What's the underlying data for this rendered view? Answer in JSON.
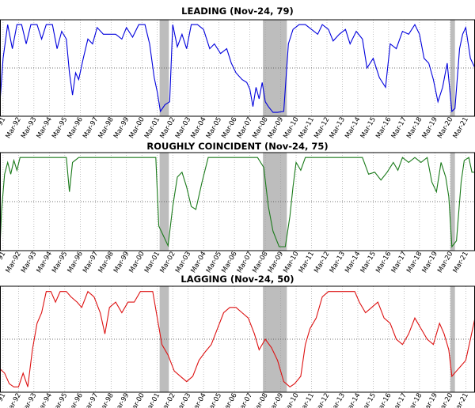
{
  "x_tick_labels": [
    "Mar-91",
    "Mar-92",
    "Mar-93",
    "Mar-94",
    "Mar-95",
    "Mar-96",
    "Mar-97",
    "Mar-98",
    "Mar-99",
    "Mar-00",
    "Mar-01",
    "Mar-02",
    "Mar-03",
    "Mar-04",
    "Mar-05",
    "Mar-06",
    "Mar-07",
    "Mar-08",
    "Mar-09",
    "Mar-10",
    "Mar-11",
    "Mar-12",
    "Mar-13",
    "Mar-14",
    "Mar-15",
    "Mar-16",
    "Mar-17",
    "Mar-18",
    "Mar-19",
    "Mar-20",
    "Mar-21"
  ],
  "chart_data": [
    {
      "type": "line",
      "title": "LEADING (Nov-24, 79)",
      "color": "#0000dd",
      "ylim": [
        0,
        100
      ],
      "reference_line": 50,
      "grid": "vertical dotted",
      "x_range": [
        1990.9,
        2021.7
      ],
      "recessions": [
        [
          2001.25,
          2001.85
        ],
        [
          2007.95,
          2009.5
        ],
        [
          2020.1,
          2020.4
        ]
      ],
      "series": [
        {
          "points": [
            [
              1990.9,
              15
            ],
            [
              1991.1,
              60
            ],
            [
              1991.4,
              95
            ],
            [
              1991.7,
              70
            ],
            [
              1992.0,
              95
            ],
            [
              1992.3,
              95
            ],
            [
              1992.6,
              75
            ],
            [
              1992.9,
              95
            ],
            [
              1993.3,
              95
            ],
            [
              1993.6,
              80
            ],
            [
              1993.9,
              95
            ],
            [
              1994.3,
              95
            ],
            [
              1994.6,
              70
            ],
            [
              1994.9,
              88
            ],
            [
              1995.2,
              80
            ],
            [
              1995.4,
              45
            ],
            [
              1995.6,
              22
            ],
            [
              1995.8,
              45
            ],
            [
              1996.0,
              38
            ],
            [
              1996.3,
              60
            ],
            [
              1996.6,
              80
            ],
            [
              1996.9,
              75
            ],
            [
              1997.2,
              92
            ],
            [
              1997.6,
              85
            ],
            [
              1998.0,
              85
            ],
            [
              1998.4,
              85
            ],
            [
              1998.8,
              80
            ],
            [
              1999.1,
              92
            ],
            [
              1999.5,
              82
            ],
            [
              1999.9,
              95
            ],
            [
              2000.3,
              95
            ],
            [
              2000.6,
              75
            ],
            [
              2000.9,
              40
            ],
            [
              2001.1,
              25
            ],
            [
              2001.3,
              5
            ],
            [
              2001.6,
              12
            ],
            [
              2001.9,
              15
            ],
            [
              2002.1,
              95
            ],
            [
              2002.4,
              72
            ],
            [
              2002.7,
              85
            ],
            [
              2003.0,
              70
            ],
            [
              2003.3,
              95
            ],
            [
              2003.7,
              95
            ],
            [
              2004.1,
              90
            ],
            [
              2004.5,
              70
            ],
            [
              2004.8,
              75
            ],
            [
              2005.2,
              65
            ],
            [
              2005.6,
              70
            ],
            [
              2005.9,
              55
            ],
            [
              2006.2,
              45
            ],
            [
              2006.6,
              38
            ],
            [
              2006.9,
              35
            ],
            [
              2007.1,
              28
            ],
            [
              2007.3,
              10
            ],
            [
              2007.5,
              30
            ],
            [
              2007.7,
              18
            ],
            [
              2007.9,
              35
            ],
            [
              2008.1,
              15
            ],
            [
              2008.3,
              10
            ],
            [
              2008.6,
              4
            ],
            [
              2008.9,
              4
            ],
            [
              2009.3,
              5
            ],
            [
              2009.6,
              75
            ],
            [
              2009.9,
              90
            ],
            [
              2010.3,
              95
            ],
            [
              2010.7,
              95
            ],
            [
              2011.1,
              90
            ],
            [
              2011.5,
              85
            ],
            [
              2011.8,
              95
            ],
            [
              2012.2,
              90
            ],
            [
              2012.5,
              78
            ],
            [
              2012.9,
              85
            ],
            [
              2013.3,
              90
            ],
            [
              2013.6,
              75
            ],
            [
              2014.0,
              88
            ],
            [
              2014.4,
              80
            ],
            [
              2014.7,
              50
            ],
            [
              2015.1,
              60
            ],
            [
              2015.5,
              40
            ],
            [
              2015.9,
              30
            ],
            [
              2016.2,
              75
            ],
            [
              2016.6,
              70
            ],
            [
              2017.0,
              88
            ],
            [
              2017.4,
              85
            ],
            [
              2017.8,
              95
            ],
            [
              2018.1,
              85
            ],
            [
              2018.4,
              60
            ],
            [
              2018.7,
              55
            ],
            [
              2019.0,
              38
            ],
            [
              2019.3,
              15
            ],
            [
              2019.6,
              30
            ],
            [
              2019.9,
              55
            ],
            [
              2020.2,
              5
            ],
            [
              2020.4,
              8
            ],
            [
              2020.7,
              70
            ],
            [
              2020.9,
              85
            ],
            [
              2021.1,
              92
            ],
            [
              2021.4,
              60
            ],
            [
              2021.7,
              50
            ]
          ]
        }
      ]
    },
    {
      "type": "line",
      "title": "ROUGHLY COINCIDENT (Nov-24, 75)",
      "color": "#1a7a1a",
      "ylim": [
        0,
        100
      ],
      "reference_line": 50,
      "grid": "vertical dotted",
      "x_range": [
        1990.9,
        2021.7
      ],
      "recessions": [
        [
          2001.25,
          2001.85
        ],
        [
          2007.95,
          2009.5
        ],
        [
          2020.1,
          2020.4
        ]
      ],
      "series": [
        {
          "points": [
            [
              1990.9,
              4
            ],
            [
              1991.0,
              40
            ],
            [
              1991.2,
              78
            ],
            [
              1991.4,
              90
            ],
            [
              1991.6,
              78
            ],
            [
              1991.8,
              92
            ],
            [
              1992.0,
              82
            ],
            [
              1992.2,
              95
            ],
            [
              1992.5,
              95
            ],
            [
              1993.5,
              95
            ],
            [
              1994.5,
              95
            ],
            [
              1995.2,
              95
            ],
            [
              1995.4,
              60
            ],
            [
              1995.6,
              90
            ],
            [
              1996.0,
              95
            ],
            [
              1997.0,
              95
            ],
            [
              1998.0,
              95
            ],
            [
              1999.0,
              95
            ],
            [
              2000.0,
              95
            ],
            [
              2000.7,
              95
            ],
            [
              2001.0,
              95
            ],
            [
              2001.2,
              25
            ],
            [
              2001.5,
              15
            ],
            [
              2001.8,
              5
            ],
            [
              2002.1,
              45
            ],
            [
              2002.4,
              75
            ],
            [
              2002.7,
              80
            ],
            [
              2003.0,
              65
            ],
            [
              2003.3,
              45
            ],
            [
              2003.6,
              42
            ],
            [
              2004.0,
              70
            ],
            [
              2004.4,
              95
            ],
            [
              2005.0,
              95
            ],
            [
              2006.0,
              95
            ],
            [
              2007.0,
              95
            ],
            [
              2007.6,
              95
            ],
            [
              2008.0,
              85
            ],
            [
              2008.3,
              45
            ],
            [
              2008.6,
              20
            ],
            [
              2009.0,
              4
            ],
            [
              2009.4,
              4
            ],
            [
              2009.7,
              35
            ],
            [
              2009.9,
              65
            ],
            [
              2010.1,
              90
            ],
            [
              2010.4,
              82
            ],
            [
              2010.7,
              95
            ],
            [
              2011.5,
              95
            ],
            [
              2012.5,
              95
            ],
            [
              2013.5,
              95
            ],
            [
              2014.0,
              95
            ],
            [
              2014.4,
              95
            ],
            [
              2014.8,
              78
            ],
            [
              2015.2,
              80
            ],
            [
              2015.6,
              72
            ],
            [
              2016.0,
              80
            ],
            [
              2016.4,
              90
            ],
            [
              2016.7,
              82
            ],
            [
              2017.0,
              95
            ],
            [
              2017.4,
              90
            ],
            [
              2017.8,
              95
            ],
            [
              2018.2,
              90
            ],
            [
              2018.6,
              95
            ],
            [
              2018.9,
              70
            ],
            [
              2019.2,
              60
            ],
            [
              2019.5,
              90
            ],
            [
              2019.8,
              75
            ],
            [
              2020.0,
              55
            ],
            [
              2020.2,
              4
            ],
            [
              2020.5,
              10
            ],
            [
              2020.8,
              70
            ],
            [
              2021.0,
              92
            ],
            [
              2021.3,
              95
            ],
            [
              2021.5,
              80
            ],
            [
              2021.7,
              80
            ]
          ]
        }
      ]
    },
    {
      "type": "line",
      "title": "LAGGING (Nov-24, 50)",
      "color": "#dd1111",
      "ylim": [
        0,
        100
      ],
      "reference_line": 50,
      "grid": "vertical dotted",
      "x_range": [
        1990.9,
        2021.7
      ],
      "recessions": [
        [
          2001.25,
          2001.85
        ],
        [
          2007.95,
          2009.5
        ],
        [
          2020.1,
          2020.4
        ]
      ],
      "series": [
        {
          "points": [
            [
              1990.9,
              22
            ],
            [
              1991.2,
              18
            ],
            [
              1991.5,
              8
            ],
            [
              1991.8,
              5
            ],
            [
              1992.1,
              5
            ],
            [
              1992.4,
              18
            ],
            [
              1992.7,
              5
            ],
            [
              1993.0,
              40
            ],
            [
              1993.3,
              65
            ],
            [
              1993.6,
              75
            ],
            [
              1993.9,
              95
            ],
            [
              1994.2,
              95
            ],
            [
              1994.5,
              85
            ],
            [
              1994.8,
              95
            ],
            [
              1995.2,
              95
            ],
            [
              1995.5,
              90
            ],
            [
              1995.9,
              85
            ],
            [
              1996.2,
              80
            ],
            [
              1996.6,
              95
            ],
            [
              1997.0,
              90
            ],
            [
              1997.4,
              75
            ],
            [
              1997.7,
              55
            ],
            [
              1998.0,
              80
            ],
            [
              1998.4,
              85
            ],
            [
              1998.8,
              75
            ],
            [
              1999.2,
              85
            ],
            [
              1999.6,
              85
            ],
            [
              2000.0,
              95
            ],
            [
              2000.4,
              95
            ],
            [
              2000.8,
              95
            ],
            [
              2001.1,
              70
            ],
            [
              2001.4,
              45
            ],
            [
              2001.8,
              35
            ],
            [
              2002.2,
              20
            ],
            [
              2002.6,
              15
            ],
            [
              2003.0,
              10
            ],
            [
              2003.4,
              15
            ],
            [
              2003.8,
              30
            ],
            [
              2004.2,
              38
            ],
            [
              2004.6,
              45
            ],
            [
              2005.0,
              60
            ],
            [
              2005.4,
              75
            ],
            [
              2005.8,
              80
            ],
            [
              2006.2,
              80
            ],
            [
              2006.6,
              75
            ],
            [
              2007.0,
              70
            ],
            [
              2007.4,
              55
            ],
            [
              2007.7,
              40
            ],
            [
              2008.1,
              50
            ],
            [
              2008.5,
              42
            ],
            [
              2008.9,
              30
            ],
            [
              2009.3,
              10
            ],
            [
              2009.7,
              5
            ],
            [
              2010.0,
              8
            ],
            [
              2010.4,
              15
            ],
            [
              2010.7,
              45
            ],
            [
              2011.0,
              60
            ],
            [
              2011.4,
              70
            ],
            [
              2011.8,
              90
            ],
            [
              2012.2,
              95
            ],
            [
              2012.8,
              95
            ],
            [
              2013.4,
              95
            ],
            [
              2013.9,
              95
            ],
            [
              2014.2,
              85
            ],
            [
              2014.6,
              75
            ],
            [
              2015.0,
              80
            ],
            [
              2015.4,
              85
            ],
            [
              2015.8,
              70
            ],
            [
              2016.2,
              65
            ],
            [
              2016.6,
              50
            ],
            [
              2017.0,
              45
            ],
            [
              2017.4,
              55
            ],
            [
              2017.8,
              70
            ],
            [
              2018.2,
              60
            ],
            [
              2018.6,
              50
            ],
            [
              2019.0,
              45
            ],
            [
              2019.4,
              65
            ],
            [
              2019.7,
              55
            ],
            [
              2020.0,
              40
            ],
            [
              2020.2,
              15
            ],
            [
              2020.5,
              20
            ],
            [
              2020.8,
              25
            ],
            [
              2021.1,
              30
            ],
            [
              2021.4,
              50
            ],
            [
              2021.7,
              70
            ]
          ]
        }
      ]
    }
  ]
}
